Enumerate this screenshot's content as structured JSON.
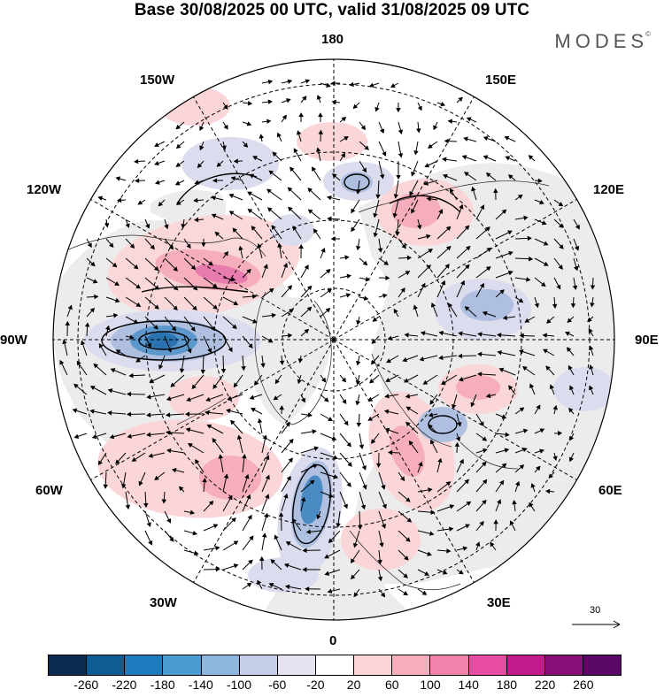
{
  "title": "Base 30/08/2025 00 UTC, valid 31/08/2025 09 UTC",
  "brand": "MODES",
  "brand_mark": "©",
  "longitude_labels": {
    "n180": "180",
    "e150": "150E",
    "e120": "120E",
    "e90": "90E",
    "e60": "60E",
    "e30": "30E",
    "s0": "0",
    "w30": "30W",
    "w60": "60W",
    "w90": "90W",
    "w120": "120W",
    "w150": "150W"
  },
  "reference_vector_label": "30",
  "colorbar": {
    "colors": [
      "#0b2b4f",
      "#105c94",
      "#1f7bbf",
      "#4a9bd1",
      "#8fb6de",
      "#c3cee8",
      "#e5e3f2",
      "#ffffff",
      "#fbd6d8",
      "#f6aebc",
      "#f283ad",
      "#e64da0",
      "#c11a8b",
      "#8b0f79",
      "#5a0868"
    ],
    "ticks": [
      "-260",
      "-220",
      "-180",
      "-140",
      "-100",
      "-60",
      "-20",
      "20",
      "60",
      "100",
      "140",
      "180",
      "220",
      "260"
    ]
  },
  "colors": {
    "land": "#ececec",
    "ocean": "#ffffff",
    "grid": "#000000",
    "positive_light": "#fbd6d8",
    "positive_mid": "#f6aebc",
    "positive_strong": "#e97cae",
    "negative_light": "#dcdcef",
    "negative_mid": "#aebfe0",
    "negative_strong": "#5c98cc",
    "negative_core": "#2a73b0"
  }
}
